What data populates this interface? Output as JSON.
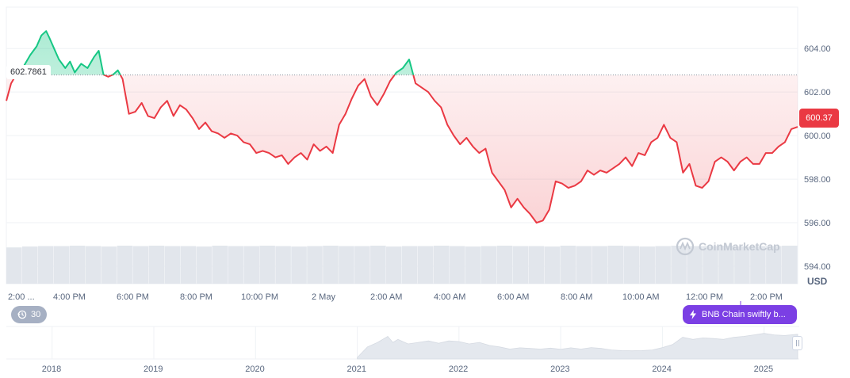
{
  "chart_data": {
    "type": "line",
    "unit": "USD",
    "reference_value": 602.7861,
    "reference_label": "602.7861",
    "current_price": "600.37",
    "y_ticks": [
      "604.00",
      "602.00",
      "600.00",
      "598.00",
      "596.00",
      "594.00"
    ],
    "y_tick_values": [
      604,
      602,
      600,
      598,
      596,
      594
    ],
    "ylim": [
      593.2,
      605.9
    ],
    "x_tick_labels": [
      "2:00 ...",
      "4:00 PM",
      "6:00 PM",
      "8:00 PM",
      "10:00 PM",
      "2 May",
      "2:00 AM",
      "4:00 AM",
      "6:00 AM",
      "8:00 AM",
      "10:00 AM",
      "12:00 PM",
      "2:00 PM"
    ],
    "x_tick_values": [
      12,
      14,
      16,
      18,
      20,
      24,
      26,
      28,
      30,
      32,
      34,
      36,
      38
    ],
    "xlim": [
      11.95,
      36.8
    ],
    "series": [
      {
        "x": [
          11.95,
          12.1,
          12.3,
          12.5,
          12.7,
          12.9,
          13.05,
          13.2,
          13.3,
          13.45,
          13.6,
          13.8,
          13.95,
          14.1,
          14.3,
          14.5,
          14.7,
          14.85,
          15.0,
          15.15,
          15.3,
          15.45,
          15.6,
          15.8,
          16.0,
          16.2,
          16.4,
          16.6,
          16.8,
          17.0,
          17.2,
          17.4,
          17.6,
          17.8,
          18.0,
          18.2,
          18.4,
          18.6,
          18.8,
          19.0,
          19.2,
          19.4,
          19.6,
          19.8,
          20.0,
          20.2,
          20.4,
          20.6,
          20.8,
          21.0,
          21.2,
          21.4,
          21.6,
          21.8,
          22.0,
          22.2,
          22.4,
          22.6,
          22.8,
          23.0,
          23.2,
          23.4,
          23.6,
          23.8,
          24.0,
          24.2,
          24.4,
          24.6,
          24.8,
          25.0,
          25.2,
          25.4,
          25.6,
          25.8,
          26.0,
          26.2,
          26.4,
          26.6,
          26.8,
          27.0,
          27.2,
          27.4,
          27.6,
          27.8,
          28.0,
          28.2,
          28.4,
          28.6,
          28.8,
          29.0,
          29.2,
          29.4,
          29.6,
          29.8,
          30.0,
          30.2,
          30.4,
          30.6,
          30.8,
          31.0,
          31.2,
          31.4,
          31.6,
          31.8,
          32.0,
          32.2,
          32.4,
          32.6,
          32.8,
          33.0,
          33.2,
          33.4,
          33.6,
          33.8,
          34.0,
          34.2,
          34.4,
          34.6,
          34.8,
          35.0,
          35.2,
          35.4,
          35.6,
          35.8,
          36.0,
          36.2,
          36.4,
          36.6,
          36.8
        ],
        "values": [
          601.6,
          602.4,
          602.9,
          603.2,
          603.7,
          604.1,
          604.6,
          604.8,
          604.5,
          604.0,
          603.5,
          603.1,
          603.4,
          602.9,
          603.3,
          603.1,
          603.6,
          603.9,
          602.8,
          602.7,
          602.8,
          603.0,
          602.6,
          601.0,
          601.1,
          601.5,
          600.9,
          600.8,
          601.3,
          601.6,
          600.9,
          601.4,
          601.2,
          600.8,
          600.3,
          600.6,
          600.2,
          600.1,
          599.9,
          600.1,
          600.0,
          599.7,
          599.6,
          599.2,
          599.3,
          599.2,
          599.0,
          599.1,
          598.7,
          599.0,
          599.2,
          598.9,
          599.6,
          599.3,
          599.5,
          599.2,
          600.5,
          601.0,
          601.7,
          602.3,
          602.6,
          601.8,
          601.4,
          601.9,
          602.5,
          602.9,
          603.1,
          603.5,
          602.4,
          602.2,
          602.0,
          601.6,
          601.3,
          600.5,
          600.0,
          599.6,
          599.9,
          599.5,
          599.2,
          599.4,
          598.3,
          597.9,
          597.5,
          596.7,
          597.1,
          596.7,
          596.4,
          596.0,
          596.1,
          596.6,
          597.9,
          597.8,
          597.6,
          597.7,
          597.9,
          598.4,
          598.2,
          598.4,
          598.3,
          598.5,
          598.7,
          599.0,
          598.6,
          599.2,
          599.1,
          599.7,
          599.9,
          600.5,
          599.9,
          599.7,
          598.3,
          598.7,
          597.7,
          597.6,
          597.9,
          598.8,
          599.0,
          598.8,
          598.4,
          598.8,
          599.0,
          598.7,
          598.7,
          599.2,
          599.2,
          599.5,
          599.7,
          600.3,
          600.4
        ]
      }
    ],
    "volume_relative": [
      0.82,
      0.84,
      0.85,
      0.85,
      0.86,
      0.85,
      0.84,
      0.86,
      0.85,
      0.86,
      0.85,
      0.85,
      0.84,
      0.86,
      0.85,
      0.85,
      0.86,
      0.85,
      0.84,
      0.85,
      0.86,
      0.85,
      0.85,
      0.86,
      0.84,
      0.85,
      0.85,
      0.86,
      0.85,
      0.84,
      0.85,
      0.86,
      0.85,
      0.85,
      0.84,
      0.86,
      0.85,
      0.85,
      0.86,
      0.85,
      0.84,
      0.85,
      0.86,
      0.85,
      0.85,
      0.86,
      0.84,
      0.85,
      0.85,
      0.86
    ],
    "navigator": {
      "year_labels": [
        "2018",
        "2019",
        "2020",
        "2021",
        "2022",
        "2023",
        "2024",
        "2025"
      ],
      "year_values": [
        2018,
        2019,
        2020,
        2021,
        2022,
        2023,
        2024,
        2025
      ],
      "xlim": [
        2017.55,
        2025.33
      ],
      "price_relative": [
        [
          2021.0,
          0.05
        ],
        [
          2021.1,
          0.4
        ],
        [
          2021.2,
          0.55
        ],
        [
          2021.3,
          0.75
        ],
        [
          2021.35,
          0.55
        ],
        [
          2021.4,
          0.65
        ],
        [
          2021.5,
          0.5
        ],
        [
          2021.6,
          0.55
        ],
        [
          2021.7,
          0.6
        ],
        [
          2021.8,
          0.52
        ],
        [
          2021.9,
          0.6
        ],
        [
          2022.0,
          0.58
        ],
        [
          2022.1,
          0.5
        ],
        [
          2022.2,
          0.55
        ],
        [
          2022.3,
          0.45
        ],
        [
          2022.4,
          0.4
        ],
        [
          2022.5,
          0.33
        ],
        [
          2022.6,
          0.37
        ],
        [
          2022.7,
          0.35
        ],
        [
          2022.8,
          0.33
        ],
        [
          2022.9,
          0.36
        ],
        [
          2023.0,
          0.32
        ],
        [
          2023.1,
          0.37
        ],
        [
          2023.2,
          0.33
        ],
        [
          2023.3,
          0.38
        ],
        [
          2023.4,
          0.35
        ],
        [
          2023.5,
          0.3
        ],
        [
          2023.6,
          0.28
        ],
        [
          2023.7,
          0.27
        ],
        [
          2023.8,
          0.28
        ],
        [
          2023.9,
          0.3
        ],
        [
          2024.0,
          0.38
        ],
        [
          2024.1,
          0.48
        ],
        [
          2024.2,
          0.72
        ],
        [
          2024.3,
          0.65
        ],
        [
          2024.4,
          0.7
        ],
        [
          2024.5,
          0.68
        ],
        [
          2024.6,
          0.65
        ],
        [
          2024.7,
          0.72
        ],
        [
          2024.8,
          0.75
        ],
        [
          2024.9,
          0.8
        ],
        [
          2025.0,
          0.85
        ],
        [
          2025.1,
          0.8
        ],
        [
          2025.2,
          0.78
        ],
        [
          2025.33,
          0.82
        ]
      ]
    },
    "watermark": "CoinMarketCap",
    "zoom_label": "30",
    "news_label": "BNB Chain swiftly b...",
    "colors": {
      "up": "#16c784",
      "down": "#ea3943",
      "grid": "#eff2f5",
      "volume": "#e2e6ec",
      "navigator": "#e4e8ee",
      "news": "#7b3fe4"
    }
  }
}
